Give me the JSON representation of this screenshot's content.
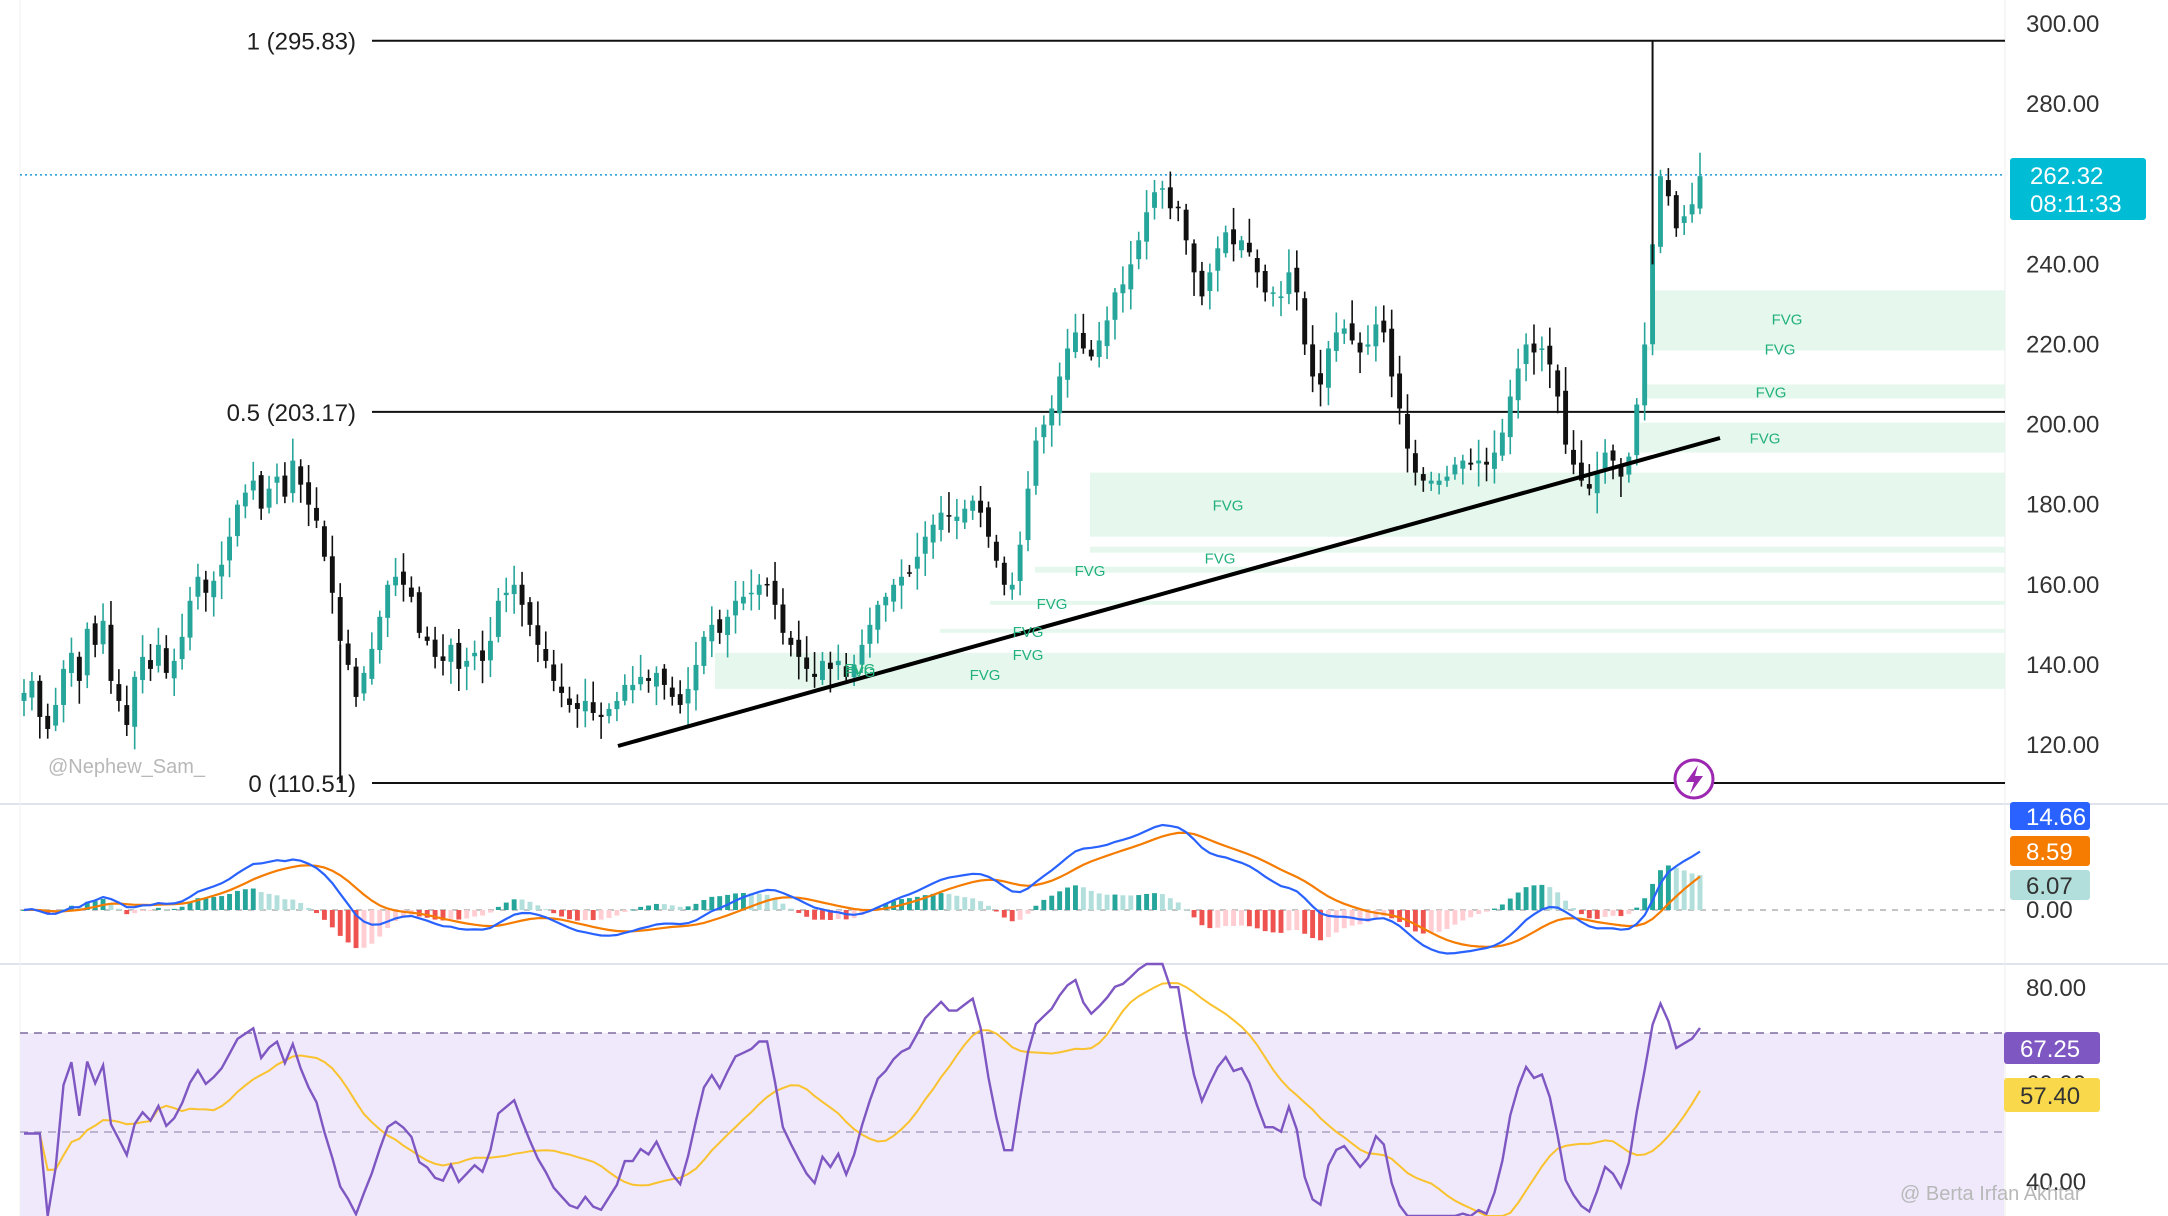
{
  "colors": {
    "up": "#26a69a",
    "down": "#111111",
    "fvg_fill": "#e6f8ee",
    "fib_line": "#111111",
    "trendline": "#000000",
    "macd_line": "#2962ff",
    "signal_line": "#f57c00",
    "hist_pos": "#26a69a",
    "hist_pos_light": "#b2dfdb",
    "hist_neg": "#ef5350",
    "hist_neg_light": "#ffcdd2",
    "rsi_line": "#7e57c2",
    "rsi_ma": "#f9c22e",
    "rsi_band": "#efe9fb",
    "price_badge": "#00bcd4",
    "macd_badge": "#2962ff",
    "signal_badge": "#f57c00",
    "hist_badge": "#b2dfdb",
    "rsi_badge": "#7e57c2",
    "rsi_ma_badge": "#f9d94b"
  },
  "price_axis": {
    "ticks": [
      "300.00",
      "280.00",
      "240.00",
      "220.00",
      "200.00",
      "180.00",
      "160.00",
      "140.00",
      "120.00"
    ]
  },
  "last_price": {
    "value": "262.32",
    "countdown": "08:11:33"
  },
  "fib_levels": [
    {
      "label": "1 (295.83)",
      "price": 295.83
    },
    {
      "label": "0.5 (203.17)",
      "price": 203.17
    },
    {
      "label": "0 (110.51)",
      "price": 110.51
    }
  ],
  "fvg_label": "FVG",
  "watermark_author": "@Nephew_Sam_",
  "watermark_source": "@ Berta Irfan Akhtar",
  "lightning-icon": "lightning-icon",
  "macd": {
    "macd_value": "14.66",
    "signal_value": "8.59",
    "hist_value": "6.07",
    "zero_label": "0.00"
  },
  "rsi": {
    "value": "67.25",
    "ma_value": "57.40",
    "hidden_tick": "60.00",
    "ticks": [
      "80.00",
      "40.00"
    ]
  },
  "chart_data": {
    "type": "candlestick",
    "series_close": [
      133,
      136,
      127,
      124,
      130,
      139,
      143,
      136,
      149,
      145,
      151,
      136,
      131,
      125,
      137,
      142,
      139,
      145,
      138,
      141,
      147,
      156,
      162,
      158,
      161,
      165,
      172,
      180,
      183,
      186,
      179,
      184,
      187,
      182,
      191,
      185,
      180,
      176,
      167,
      158,
      146,
      140,
      132,
      138,
      144,
      152,
      160,
      162,
      160,
      157,
      148,
      146,
      142,
      141,
      145,
      139,
      141,
      143,
      141,
      146,
      156,
      158,
      160,
      155,
      150,
      145,
      141,
      136,
      133,
      130,
      129,
      131,
      128,
      127,
      129,
      131,
      135,
      135,
      137,
      136,
      138,
      135,
      132,
      130,
      134,
      140,
      147,
      150,
      148,
      152,
      156,
      157,
      158,
      160,
      160,
      155,
      148,
      145,
      142,
      139,
      137,
      141,
      139,
      141,
      137,
      140,
      145,
      150,
      155,
      157,
      160,
      162,
      163,
      167,
      172,
      175,
      178,
      177,
      177,
      179,
      181,
      178,
      172,
      166,
      160,
      160,
      170,
      184,
      196,
      200,
      204,
      212,
      219,
      223,
      219,
      217,
      221,
      226,
      233,
      235,
      240,
      246,
      253,
      258,
      259,
      254,
      254,
      246,
      238,
      232,
      238,
      244,
      248,
      245,
      246,
      243,
      238,
      233,
      233,
      232,
      238,
      233,
      220,
      212,
      210,
      219,
      223,
      224,
      221,
      218,
      220,
      225,
      223,
      212,
      204,
      194,
      188,
      186,
      186,
      186,
      187,
      190,
      191,
      190,
      191,
      190,
      193,
      198,
      207,
      214,
      220,
      218,
      219,
      215,
      207,
      195,
      190,
      186,
      184,
      188,
      193,
      191,
      187,
      192,
      205,
      220,
      245,
      262,
      257,
      249,
      252,
      255,
      262
    ],
    "price_axis_range": [
      110.51,
      300
    ],
    "fib_levels": [
      295.83,
      203.17,
      110.51
    ],
    "fvg_zones": [
      [
        219.5,
        233.5
      ],
      [
        218.5,
        219.5
      ],
      [
        206.5,
        210.0
      ],
      [
        193.0,
        200.5
      ],
      [
        172.0,
        188.0
      ],
      [
        168.0,
        169.5
      ],
      [
        163.0,
        164.5
      ],
      [
        155.0,
        156.0
      ],
      [
        148.0,
        149.0
      ],
      [
        134.0,
        143.0
      ]
    ],
    "macd_labels": [
      "14.66",
      "8.59",
      "6.07"
    ],
    "rsi_range": [
      40,
      80
    ],
    "rsi_levels": [
      70,
      50
    ]
  }
}
